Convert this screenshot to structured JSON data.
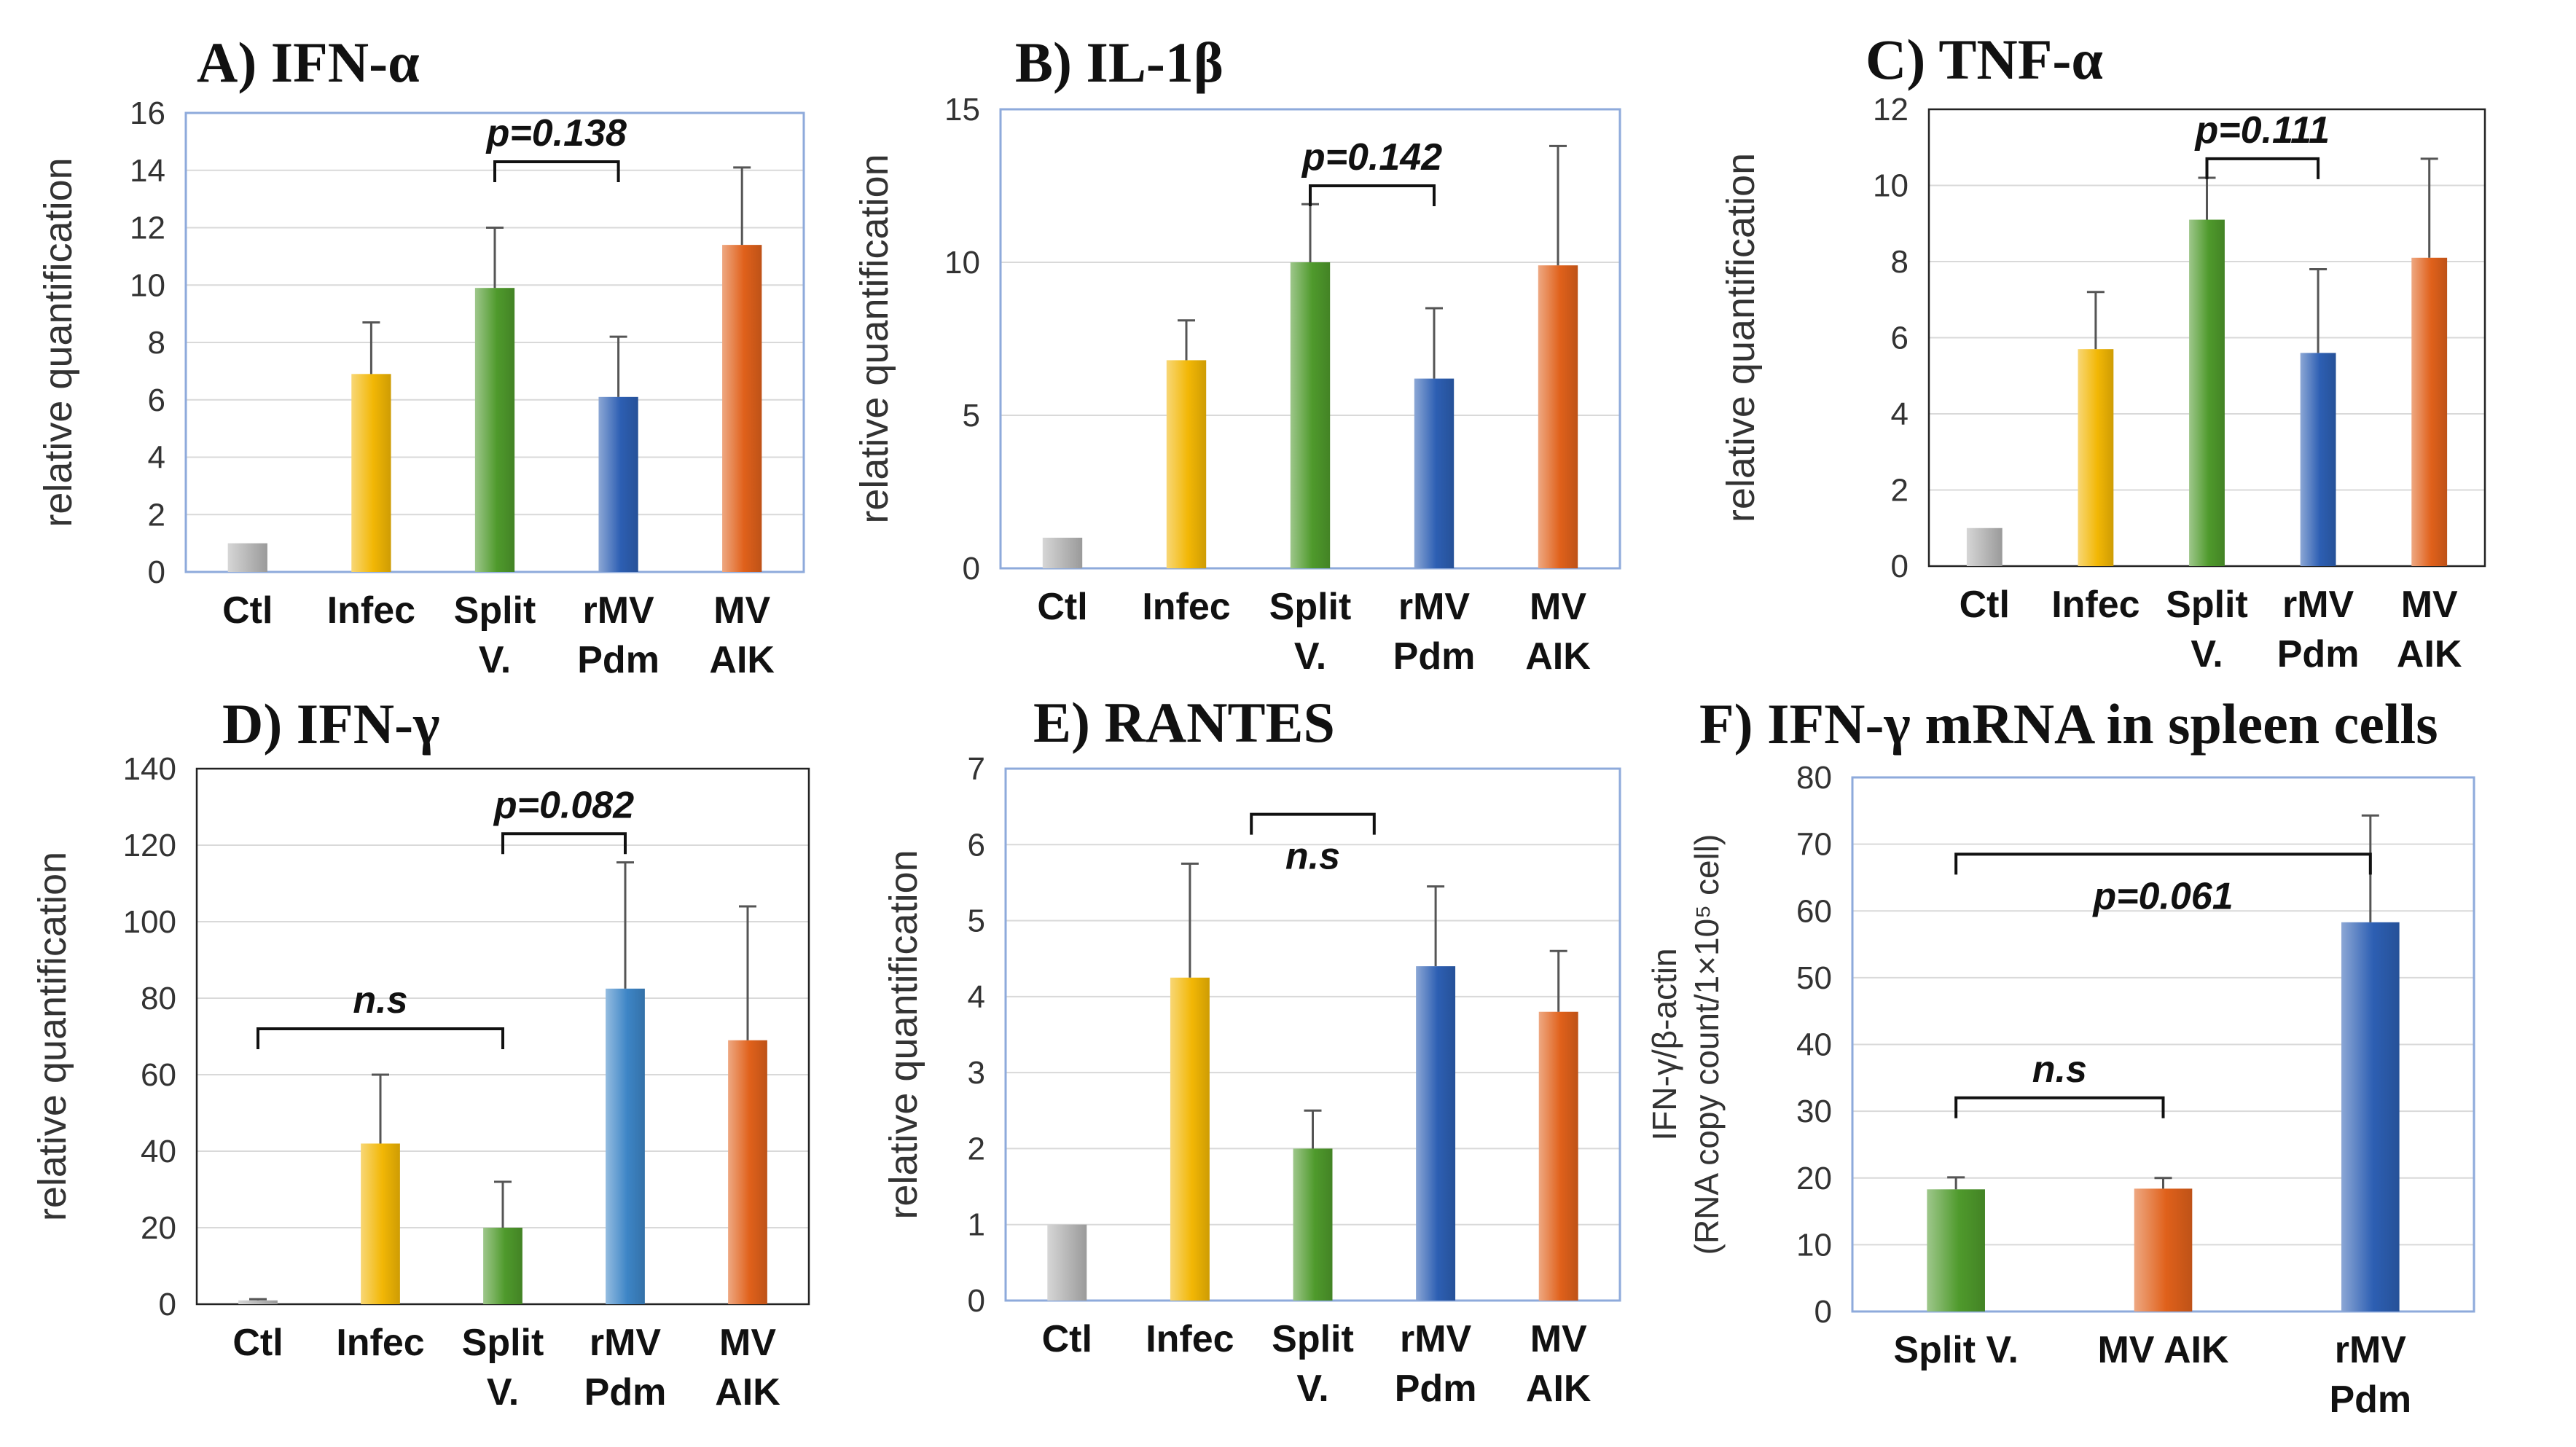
{
  "colors": {
    "Ctl": "#b5b5b5",
    "Infec": "#f2b705",
    "Split": "#4f9a2c",
    "rMV": "#2d5fb3",
    "rMVlight": "#3d85c6",
    "AIK": "#e0611b",
    "frame_blue": "#8eaadb",
    "frame_black": "#222222"
  },
  "chart_data": [
    {
      "id": "A",
      "type": "bar",
      "title": "A) IFN-α",
      "ylabel": "relative quantification",
      "ylim": [
        0,
        16
      ],
      "yticks": [
        "0",
        "2",
        "4",
        "6",
        "8",
        "10",
        "12",
        "14",
        "16"
      ],
      "categories": [
        [
          "Ctl"
        ],
        [
          "Infec"
        ],
        [
          "Split",
          "V."
        ],
        [
          "rMV",
          "Pdm"
        ],
        [
          "MV",
          "AIK"
        ]
      ],
      "values": [
        1,
        6.9,
        9.9,
        6.1,
        11.4
      ],
      "errors": [
        0.05,
        1.8,
        2.1,
        2.1,
        2.7
      ],
      "colorKeys": [
        "Ctl",
        "Infec",
        "Split",
        "rMV",
        "AIK"
      ],
      "frame": "frame_blue",
      "annotations": [
        {
          "type": "bracket",
          "from": 2,
          "to": 3,
          "y": 14.3,
          "label": "p=0.138"
        }
      ]
    },
    {
      "id": "B",
      "type": "bar",
      "title": "B) IL-1β",
      "ylabel": "relative quantification",
      "ylim": [
        0,
        15
      ],
      "yticks": [
        "0",
        "5",
        "10",
        "15"
      ],
      "categories": [
        [
          "Ctl"
        ],
        [
          "Infec"
        ],
        [
          "Split",
          "V."
        ],
        [
          "rMV",
          "Pdm"
        ],
        [
          "MV",
          "AIK"
        ]
      ],
      "values": [
        1,
        6.8,
        10,
        6.2,
        9.9
      ],
      "errors": [
        0.05,
        1.3,
        1.9,
        2.3,
        3.9
      ],
      "colorKeys": [
        "Ctl",
        "Infec",
        "Split",
        "rMV",
        "AIK"
      ],
      "frame": "frame_blue",
      "annotations": [
        {
          "type": "bracket",
          "from": 2,
          "to": 3,
          "y": 12.5,
          "label": "p=0.142"
        }
      ]
    },
    {
      "id": "C",
      "type": "bar",
      "title": "C) TNF-α",
      "ylabel": "relative quantification",
      "ylim": [
        0,
        12
      ],
      "yticks": [
        "0",
        "2",
        "4",
        "6",
        "8",
        "10",
        "12"
      ],
      "categories": [
        [
          "Ctl"
        ],
        [
          "Infec"
        ],
        [
          "Split",
          "V."
        ],
        [
          "rMV",
          "Pdm"
        ],
        [
          "MV",
          "AIK"
        ]
      ],
      "values": [
        1,
        5.7,
        9.1,
        5.6,
        8.1
      ],
      "errors": [
        0.05,
        1.5,
        1.1,
        2.2,
        2.6
      ],
      "colorKeys": [
        "Ctl",
        "Infec",
        "Split",
        "rMV",
        "AIK"
      ],
      "frame": "frame_black",
      "annotations": [
        {
          "type": "bracket",
          "from": 2,
          "to": 3,
          "y": 10.7,
          "label": "p=0.111"
        }
      ]
    },
    {
      "id": "D",
      "type": "bar",
      "title": "D) IFN-γ",
      "ylabel": "relative quantification",
      "ylim": [
        0,
        140
      ],
      "yticks": [
        "0",
        "20",
        "40",
        "60",
        "80",
        "100",
        "120",
        "140"
      ],
      "categories": [
        [
          "Ctl"
        ],
        [
          "Infec"
        ],
        [
          "Split",
          "V."
        ],
        [
          "rMV",
          "Pdm"
        ],
        [
          "MV",
          "AIK"
        ]
      ],
      "values": [
        1,
        42,
        20,
        82.5,
        69
      ],
      "errors": [
        0.3,
        18,
        12,
        33,
        35
      ],
      "colorKeys": [
        "Ctl",
        "Infec",
        "Split",
        "rMVlight",
        "AIK"
      ],
      "frame": "frame_black",
      "annotations": [
        {
          "type": "bracket",
          "from": 0,
          "to": 2,
          "y": 72,
          "label": "n.s"
        },
        {
          "type": "bracket",
          "from": 2,
          "to": 3,
          "y": 123,
          "label": "p=0.082"
        }
      ]
    },
    {
      "id": "E",
      "type": "bar",
      "title": "E) RANTES",
      "ylabel": "relative quantification",
      "ylim": [
        0,
        7
      ],
      "yticks": [
        "0",
        "1",
        "2",
        "3",
        "4",
        "5",
        "6",
        "7"
      ],
      "categories": [
        [
          "Ctl"
        ],
        [
          "Infec"
        ],
        [
          "Split",
          "V."
        ],
        [
          "rMV",
          "Pdm"
        ],
        [
          "MV",
          "AIK"
        ]
      ],
      "values": [
        1,
        4.25,
        2,
        4.4,
        3.8
      ],
      "errors": [
        0.03,
        1.5,
        0.5,
        1.05,
        0.8
      ],
      "colorKeys": [
        "Ctl",
        "Infec",
        "Split",
        "rMV",
        "AIK"
      ],
      "frame": "frame_blue",
      "annotations": [
        {
          "type": "bracket",
          "from": 1.5,
          "to": 2.5,
          "y": 6.4,
          "label": "n.s",
          "labelBelow": true
        }
      ]
    },
    {
      "id": "F",
      "type": "bar",
      "title": "F) IFN-γ mRNA in spleen cells",
      "ylabel": "IFN-γ/β-actin",
      "ylabel2": "(RNA copy count/1×10⁵ cell)",
      "ylim": [
        0,
        80
      ],
      "yticks": [
        "0",
        "10",
        "20",
        "30",
        "40",
        "50",
        "60",
        "70",
        "80"
      ],
      "categories": [
        [
          "Split V."
        ],
        [
          "MV AIK"
        ],
        [
          "rMV",
          "Pdm"
        ]
      ],
      "values": [
        18.3,
        18.4,
        58.3
      ],
      "errors": [
        1.8,
        1.6,
        16
      ],
      "colorKeys": [
        "Split",
        "AIK",
        "rMV"
      ],
      "frame": "frame_blue",
      "annotations": [
        {
          "type": "bracket",
          "from": 0,
          "to": 1,
          "y": 32,
          "label": "n.s",
          "down": true
        },
        {
          "type": "bracket",
          "from": 0,
          "to": 2,
          "y": 68.5,
          "label": "p=0.061",
          "down": true,
          "labelBelow": true
        }
      ]
    }
  ]
}
